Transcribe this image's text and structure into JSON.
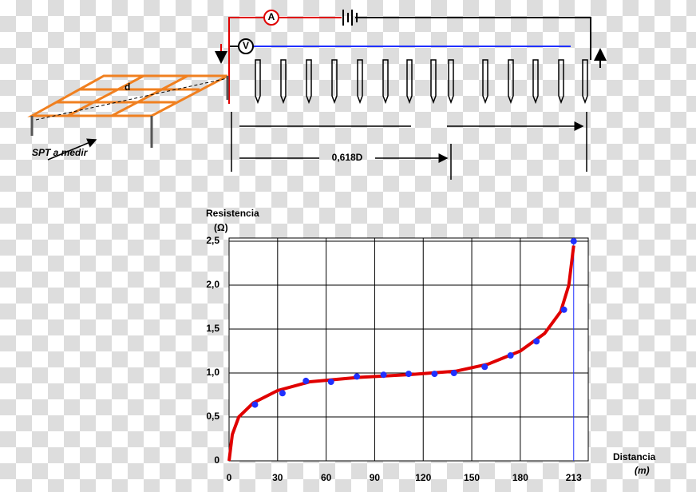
{
  "diagram": {
    "ammeter": "A",
    "voltmeter": "V",
    "depth": "d",
    "grid_label": "SPT a medir",
    "distance_label": "0,618D"
  },
  "chart_data": {
    "type": "line",
    "x_label": "Distancia",
    "x_unit": "(m)",
    "y_label": "Resistencia",
    "y_unit": "(Ω)",
    "xlim": [
      0,
      222
    ],
    "ylim": [
      0,
      2.5
    ],
    "xticks": [
      0,
      30,
      60,
      90,
      120,
      150,
      180,
      213
    ],
    "yticks": [
      0,
      {
        "value": 0.5,
        "label": "0,5"
      },
      {
        "value": 1,
        "label": "1,0"
      },
      {
        "value": 1.5,
        "label": "1,5"
      },
      {
        "value": 2,
        "label": "2,0"
      },
      {
        "value": 2.5,
        "label": "2,5"
      }
    ],
    "grid": true,
    "series": [
      {
        "type": "line",
        "color": "#e00000",
        "x": [
          0,
          2,
          6,
          15,
          30,
          50,
          80,
          110,
          140,
          160,
          180,
          195,
          205,
          210,
          213
        ],
        "values": [
          0,
          0.3,
          0.5,
          0.66,
          0.8,
          0.9,
          0.95,
          0.98,
          1.02,
          1.1,
          1.25,
          1.45,
          1.7,
          2.0,
          2.45
        ]
      },
      {
        "type": "scatter",
        "color": "#2030ff",
        "x": [
          16,
          33,
          47.5,
          63,
          79,
          95.5,
          111,
          127,
          139,
          158,
          174,
          190,
          207,
          213
        ],
        "values": [
          0.64,
          0.77,
          0.91,
          0.9,
          0.96,
          0.98,
          0.99,
          0.99,
          1.0,
          1.07,
          1.2,
          1.36,
          1.72,
          2.5
        ]
      }
    ]
  }
}
